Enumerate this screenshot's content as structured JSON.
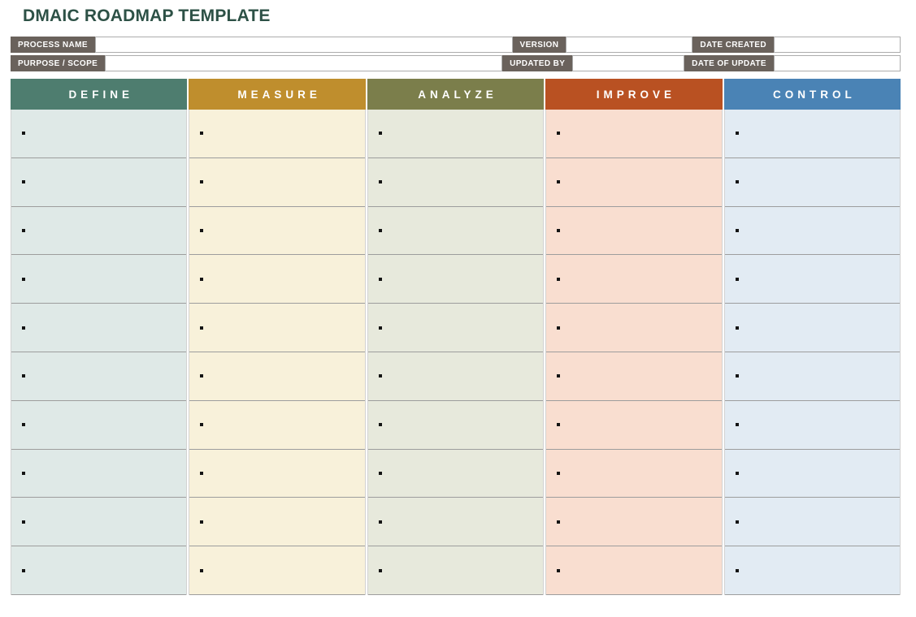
{
  "page": {
    "title": "DMAIC ROADMAP TEMPLATE"
  },
  "form": {
    "fields": [
      {
        "label": "PROCESS NAME",
        "value": ""
      },
      {
        "label": "VERSION",
        "value": ""
      },
      {
        "label": "DATE CREATED",
        "value": ""
      },
      {
        "label": "PURPOSE / SCOPE",
        "value": ""
      },
      {
        "label": "UPDATED BY",
        "value": ""
      },
      {
        "label": "DATE OF UPDATE",
        "value": ""
      }
    ]
  },
  "board": {
    "rows_per_column": 10,
    "bullet_char": "•",
    "columns": [
      {
        "label": "DEFINE",
        "header_color": "#4e7d6f",
        "body_color": "#dfe9e7"
      },
      {
        "label": "MEASURE",
        "header_color": "#bf8e2d",
        "body_color": "#f8f1da"
      },
      {
        "label": "ANALYZE",
        "header_color": "#7b7e4b",
        "body_color": "#e7e9dc"
      },
      {
        "label": "IMPROVE",
        "header_color": "#b95122",
        "body_color": "#f9ded0"
      },
      {
        "label": "CONTROL",
        "header_color": "#4a83b5",
        "body_color": "#e2ebf3"
      }
    ]
  },
  "colors": {
    "title_text": "#2d5146",
    "field_label_bg": "#6a625c",
    "row_separator": "#9d9d9d",
    "input_border": "#acacac"
  }
}
